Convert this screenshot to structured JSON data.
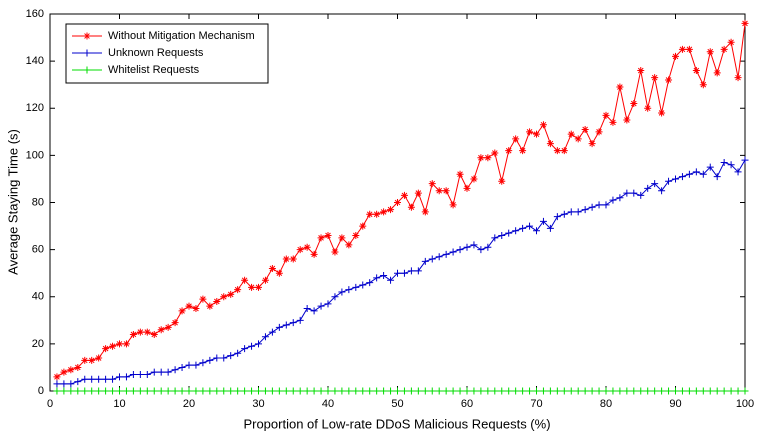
{
  "chart_data": {
    "type": "line",
    "xlabel": "Proportion of Low-rate DDoS Malicious Requests (%)",
    "ylabel": "Average Staying Time (s)",
    "x": [
      1,
      2,
      3,
      4,
      5,
      6,
      7,
      8,
      9,
      10,
      11,
      12,
      13,
      14,
      15,
      16,
      17,
      18,
      19,
      20,
      21,
      22,
      23,
      24,
      25,
      26,
      27,
      28,
      29,
      30,
      31,
      32,
      33,
      34,
      35,
      36,
      37,
      38,
      39,
      40,
      41,
      42,
      43,
      44,
      45,
      46,
      47,
      48,
      49,
      50,
      51,
      52,
      53,
      54,
      55,
      56,
      57,
      58,
      59,
      60,
      61,
      62,
      63,
      64,
      65,
      66,
      67,
      68,
      69,
      70,
      71,
      72,
      73,
      74,
      75,
      76,
      77,
      78,
      79,
      80,
      81,
      82,
      83,
      84,
      85,
      86,
      87,
      88,
      89,
      90,
      91,
      92,
      93,
      94,
      95,
      96,
      97,
      98,
      99,
      100
    ],
    "series": [
      {
        "name": "Without Mitigation Mechanism",
        "color": "#ff0000",
        "marker": "*",
        "values": [
          6,
          8,
          9,
          10,
          13,
          13,
          14,
          18,
          19,
          20,
          20,
          24,
          25,
          25,
          24,
          26,
          27,
          29,
          34,
          36,
          35,
          39,
          36,
          38,
          40,
          41,
          43,
          47,
          44,
          44,
          47,
          52,
          50,
          56,
          56,
          60,
          61,
          58,
          65,
          66,
          59,
          65,
          62,
          66,
          70,
          75,
          75,
          76,
          77,
          80,
          83,
          78,
          84,
          76,
          88,
          85,
          85,
          79,
          92,
          86,
          90,
          99,
          99,
          101,
          89,
          102,
          107,
          102,
          110,
          109,
          113,
          105,
          102,
          102,
          109,
          107,
          111,
          105,
          110,
          117,
          114,
          129,
          115,
          122,
          136,
          120,
          133,
          118,
          132,
          142,
          145,
          145,
          136,
          130,
          144,
          135,
          145,
          148,
          133,
          156
        ]
      },
      {
        "name": "Unknown Requests",
        "color": "#0000cc",
        "marker": "+",
        "values": [
          3,
          3,
          3,
          4,
          5,
          5,
          5,
          5,
          5,
          6,
          6,
          7,
          7,
          7,
          8,
          8,
          8,
          9,
          10,
          11,
          11,
          12,
          13,
          14,
          14,
          15,
          16,
          18,
          19,
          20,
          23,
          25,
          27,
          28,
          29,
          30,
          35,
          34,
          36,
          37,
          40,
          42,
          43,
          44,
          45,
          46,
          48,
          49,
          47,
          50,
          50,
          51,
          51,
          55,
          56,
          57,
          58,
          59,
          60,
          61,
          62,
          60,
          61,
          65,
          66,
          67,
          68,
          69,
          70,
          68,
          72,
          69,
          74,
          75,
          76,
          76,
          77,
          78,
          79,
          79,
          81,
          82,
          84,
          84,
          83,
          86,
          88,
          85,
          89,
          90,
          91,
          92,
          93,
          92,
          95,
          91,
          97,
          96,
          93,
          98
        ]
      },
      {
        "name": "Whitelist Requests",
        "color": "#00dd00",
        "marker": "+",
        "values": [
          0,
          0,
          0,
          0,
          0,
          0,
          0,
          0,
          0,
          0,
          0,
          0,
          0,
          0,
          0,
          0,
          0,
          0,
          0,
          0,
          0,
          0,
          0,
          0,
          0,
          0,
          0,
          0,
          0,
          0,
          0,
          0,
          0,
          0,
          0,
          0,
          0,
          0,
          0,
          0,
          0,
          0,
          0,
          0,
          0,
          0,
          0,
          0,
          0,
          0,
          0,
          0,
          0,
          0,
          0,
          0,
          0,
          0,
          0,
          0,
          0,
          0,
          0,
          0,
          0,
          0,
          0,
          0,
          0,
          0,
          0,
          0,
          0,
          0,
          0,
          0,
          0,
          0,
          0,
          0,
          0,
          0,
          0,
          0,
          0,
          0,
          0,
          0,
          0,
          0,
          0,
          0,
          0,
          0,
          0,
          0,
          0,
          0,
          0,
          0
        ]
      }
    ],
    "xlim": [
      0,
      100
    ],
    "xticks": [
      0,
      10,
      20,
      30,
      40,
      50,
      60,
      70,
      80,
      90,
      100
    ],
    "ylim": [
      0,
      160
    ],
    "yticks": [
      0,
      20,
      40,
      60,
      80,
      100,
      120,
      140,
      160
    ],
    "legend": "upper-left"
  }
}
